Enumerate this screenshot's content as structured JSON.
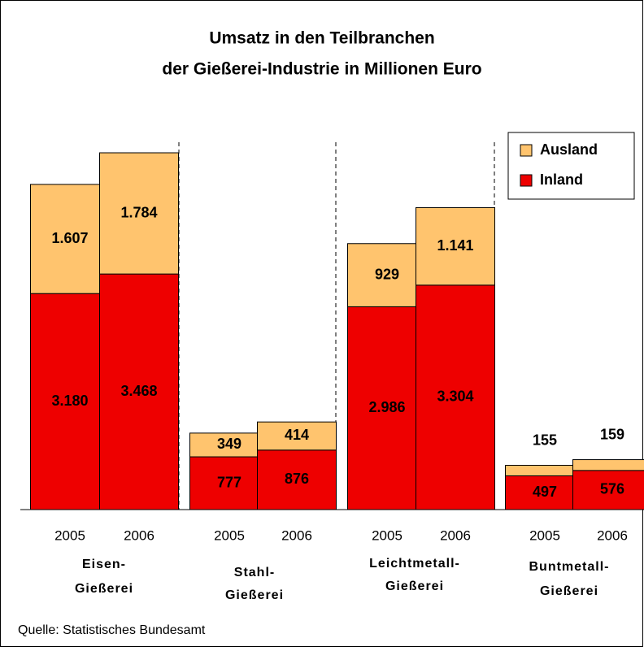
{
  "chart_data": {
    "type": "stacked-bar",
    "title": [
      "Umsatz in den Teilbranchen",
      "der Gießerei-Industrie in Millionen Euro"
    ],
    "categories": [
      "2005",
      "2006",
      "2005",
      "2006",
      "2005",
      "2006",
      "2005",
      "2006"
    ],
    "groups": [
      [
        "Eisen-",
        "Gießerei"
      ],
      [
        "Stahl-",
        "Gießerei"
      ],
      [
        "Leichtmetall-",
        "Gießerei"
      ],
      [
        "Buntmetall-",
        "Gießerei"
      ]
    ],
    "series": [
      {
        "name": "Inland",
        "color": "#ee0000",
        "values": [
          3180,
          3468,
          777,
          876,
          2986,
          3304,
          497,
          576
        ],
        "value_labels": [
          "3.180",
          "3.468",
          "777",
          "876",
          "2.986",
          "3.304",
          "497",
          "576"
        ]
      },
      {
        "name": "Ausland",
        "color": "#ffc46e",
        "values": [
          1607,
          1784,
          349,
          414,
          929,
          1141,
          155,
          159
        ],
        "value_labels": [
          "1.607",
          "1.784",
          "349",
          "414",
          "929",
          "1.141",
          "155",
          "159"
        ]
      }
    ],
    "legend": "upper right",
    "source": "Quelle: Statistisches Bundesamt"
  }
}
